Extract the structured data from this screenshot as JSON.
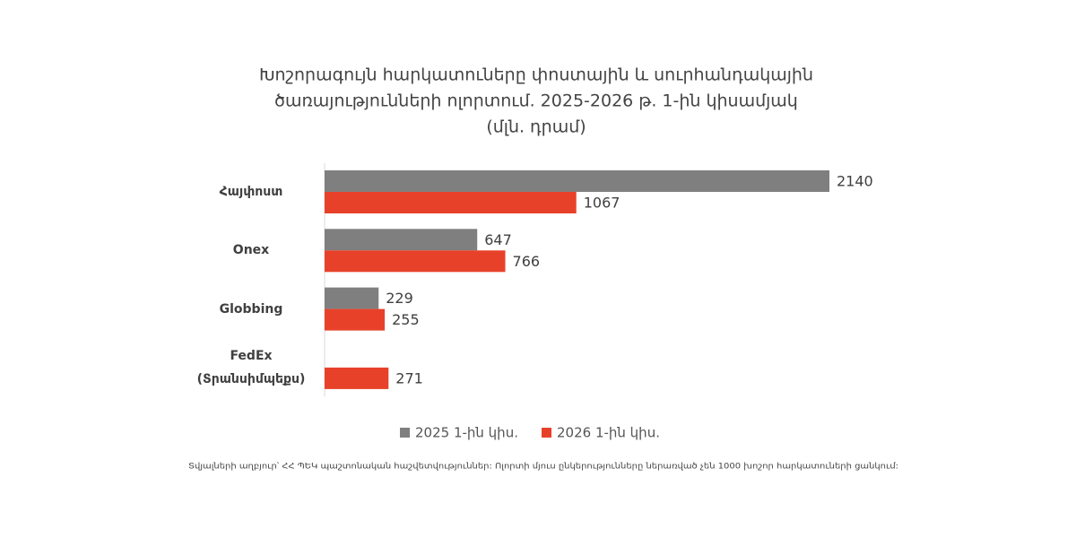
{
  "chart_data": {
    "type": "bar",
    "orientation": "horizontal",
    "title": [
      "Խոշորագույն հարկատուները փոստային և սուրհանդակային",
      "ծառայությունների ոլորտում. 2025-2026 թ. 1-ին կիսամյակ"
    ],
    "subtitle": "(մլն. դրամ)",
    "categories": [
      "Հայփոստ",
      "Onex",
      "Globbing",
      "FedEx (Տրանսիմպեքս)"
    ],
    "series": [
      {
        "name": "2025 1-ին կիս.",
        "color": "#7f7f7f",
        "values": [
          2140,
          647,
          229,
          null
        ]
      },
      {
        "name": "2026 1-ին կիս.",
        "color": "#e8412a",
        "values": [
          1067,
          766,
          255,
          271
        ]
      }
    ],
    "legend": "bottom",
    "source": "Տվյալների աղբյուր՝ ՀՀ ՊԵԿ պաշտոնական հաշվետվություններ: Ոլորտի մյուս ընկերությունները ներառված չեն 1000 խոշոր հարկատուների ցանկում:"
  }
}
